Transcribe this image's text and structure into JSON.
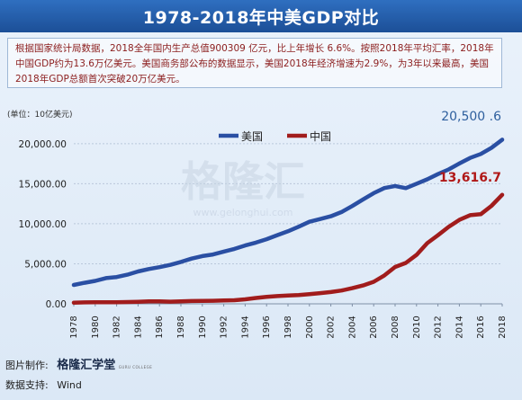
{
  "header": {
    "title": "1978-2018年中美GDP对比"
  },
  "intro": {
    "text": "根据国家统计局数据，2018全年国内生产总值900309 亿元，比上年增长 6.6%。按照2018年平均汇率，2018年中国GDP约为13.6万亿美元。美国商务部公布的数据显示，美国2018年经济增速为2.9%，为3年以来最高，美国2018年GDP总额首次突破20万亿美元。"
  },
  "watermark": {
    "text": "格隆汇",
    "url": "www.gelonghui.com"
  },
  "footer": {
    "maker_label": "图片制作:",
    "maker_name": "格隆汇学堂",
    "maker_sub": "GURU COLLEGE",
    "source_label": "数据支持:",
    "source_name": "Wind"
  },
  "chart_data": {
    "type": "line",
    "title": "",
    "unit_label": "(单位：10亿美元)",
    "xlabel": "",
    "ylabel": "",
    "ylim": [
      0,
      22000
    ],
    "yticks": [
      "0.00",
      "5,000.00",
      "10,000.00",
      "15,000.00",
      "20,000.00"
    ],
    "ytick_values": [
      0,
      5000,
      10000,
      15000,
      20000
    ],
    "xticks": [
      "1978",
      "1980",
      "1982",
      "1984",
      "1986",
      "1988",
      "1990",
      "1992",
      "1994",
      "1996",
      "1998",
      "2000",
      "2002",
      "2004",
      "2006",
      "2008",
      "2010",
      "2012",
      "2014",
      "2016",
      "2018"
    ],
    "grid": true,
    "legend": "top-left",
    "x": [
      1978,
      1979,
      1980,
      1981,
      1982,
      1983,
      1984,
      1985,
      1986,
      1987,
      1988,
      1989,
      1990,
      1991,
      1992,
      1993,
      1994,
      1995,
      1996,
      1997,
      1998,
      1999,
      2000,
      2001,
      2002,
      2003,
      2004,
      2005,
      2006,
      2007,
      2008,
      2009,
      2010,
      2011,
      2012,
      2013,
      2014,
      2015,
      2016,
      2017,
      2018
    ],
    "series": [
      {
        "name": "美国",
        "color": "#2a4fa3",
        "end_label": "20,500 .6",
        "end_label_color": "#2e5f9e",
        "values": [
          2357,
          2632,
          2857,
          3207,
          3343,
          3634,
          4037,
          4339,
          4580,
          4855,
          5236,
          5642,
          5963,
          6158,
          6520,
          6859,
          7287,
          7640,
          8073,
          8578,
          9063,
          9631,
          10252,
          10582,
          10936,
          11458,
          12214,
          13037,
          13815,
          14452,
          14713,
          14449,
          14992,
          15543,
          16197,
          16785,
          17522,
          18219,
          18707,
          19485,
          20501
        ]
      },
      {
        "name": "中国",
        "color": "#a11c1c",
        "end_label": "13,616.7",
        "end_label_color": "#b01818",
        "values": [
          150,
          178,
          191,
          196,
          205,
          230,
          260,
          310,
          301,
          273,
          313,
          348,
          361,
          383,
          427,
          445,
          564,
          734,
          864,
          962,
          1029,
          1094,
          1211,
          1339,
          1471,
          1660,
          1955,
          2286,
          2752,
          3552,
          4598,
          5110,
          6101,
          7573,
          8561,
          9607,
          10482,
          11065,
          11191,
          12238,
          13617
        ]
      }
    ]
  }
}
